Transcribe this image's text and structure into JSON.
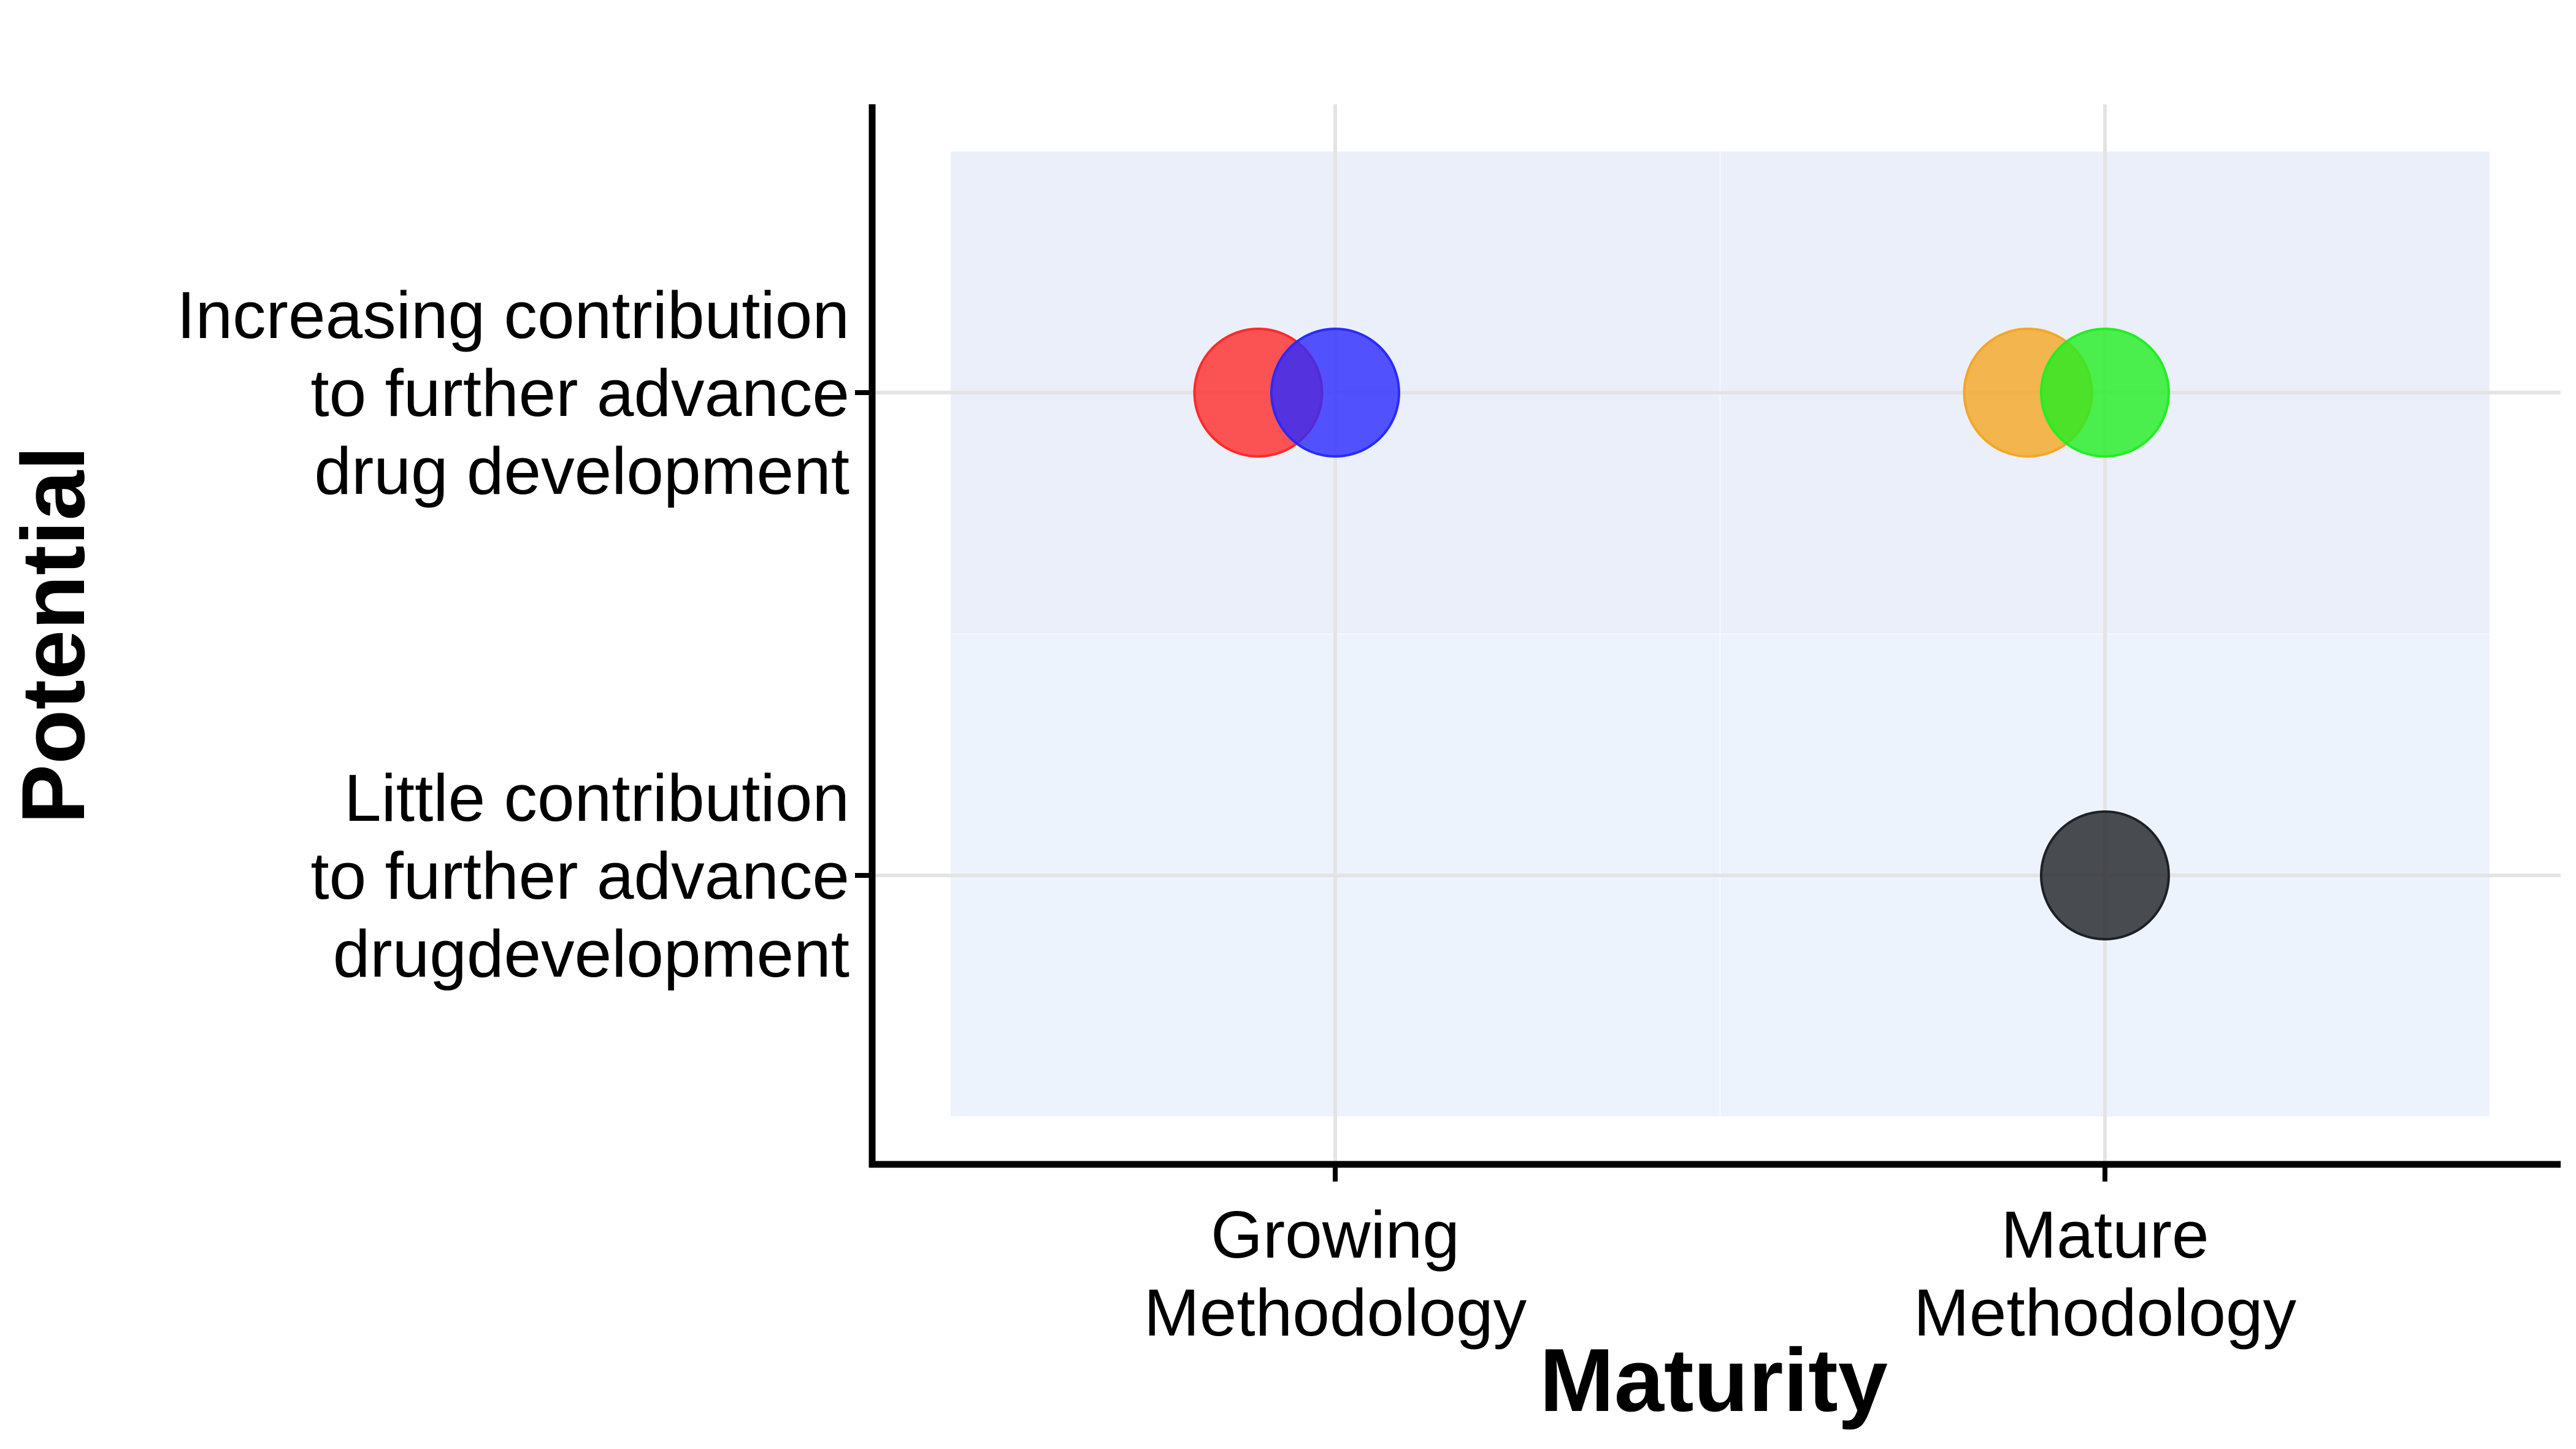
{
  "chart_data": {
    "type": "scatter",
    "xlabel": "Maturity",
    "ylabel": "Potential",
    "x_categories": [
      {
        "lines": [
          "Growing",
          "Methodology"
        ]
      },
      {
        "lines": [
          "Mature",
          "Methodology"
        ]
      }
    ],
    "y_categories": [
      {
        "lines": [
          "Little contribution",
          "to further advance",
          "drugdevelopment"
        ]
      },
      {
        "lines": [
          "Increasing contribution",
          "to further advance",
          "drug development"
        ]
      }
    ],
    "quadrants": [
      {
        "x": 0,
        "y": 1,
        "color": "#ebeffa"
      },
      {
        "x": 1,
        "y": 1,
        "color": "#ebeffa"
      },
      {
        "x": 0,
        "y": 0,
        "color": "#edf3fd"
      },
      {
        "x": 1,
        "y": 0,
        "color": "#edf3fd"
      }
    ],
    "points": [
      {
        "x": 0,
        "y": 1,
        "offset": -0.1,
        "color": "#ff2a2a"
      },
      {
        "x": 0,
        "y": 1,
        "offset": 0,
        "color": "#2a2aff"
      },
      {
        "x": 1,
        "y": 1,
        "offset": -0.1,
        "color": "#f5a623"
      },
      {
        "x": 1,
        "y": 1,
        "offset": 0,
        "color": "#22ee22"
      },
      {
        "x": 1,
        "y": 0,
        "offset": 0,
        "color": "#1e2124"
      }
    ],
    "grid": true,
    "legend": "none"
  }
}
